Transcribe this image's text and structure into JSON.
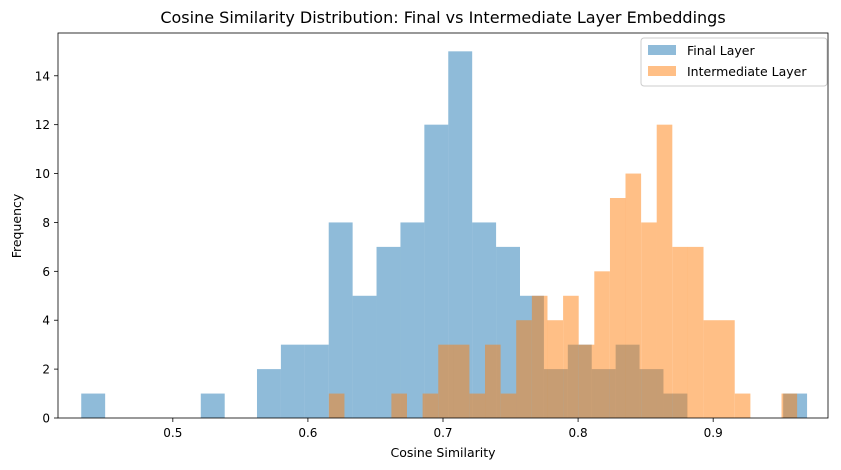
{
  "chart_data": {
    "type": "bar",
    "title": "Cosine Similarity Distribution: Final vs Intermediate Layer Embeddings",
    "xlabel": "Cosine Similarity",
    "ylabel": "Frequency",
    "xlim": [
      0.415,
      0.985
    ],
    "ylim": [
      0,
      15.75
    ],
    "x_ticks": [
      0.5,
      0.6,
      0.7,
      0.8,
      0.9
    ],
    "x_tick_labels": [
      "0.5",
      "0.6",
      "0.7",
      "0.8",
      "0.9"
    ],
    "y_ticks": [
      0,
      2,
      4,
      6,
      8,
      10,
      12,
      14
    ],
    "y_tick_labels": [
      "0",
      "2",
      "4",
      "6",
      "8",
      "10",
      "12",
      "14"
    ],
    "grid": false,
    "legend_position": "top-right",
    "series": [
      {
        "name": "Final Layer",
        "color": "#1f77b4",
        "opacity": 0.5,
        "bin_width": 0.0177,
        "bins": [
          {
            "x": 0.4322,
            "count": 1
          },
          {
            "x": 0.5207,
            "count": 1
          },
          {
            "x": 0.5623,
            "count": 2
          },
          {
            "x": 0.58,
            "count": 3
          },
          {
            "x": 0.5977,
            "count": 3
          },
          {
            "x": 0.6154,
            "count": 8
          },
          {
            "x": 0.6331,
            "count": 5
          },
          {
            "x": 0.6508,
            "count": 7
          },
          {
            "x": 0.6685,
            "count": 8
          },
          {
            "x": 0.6862,
            "count": 12
          },
          {
            "x": 0.7039,
            "count": 15
          },
          {
            "x": 0.7216,
            "count": 8
          },
          {
            "x": 0.7393,
            "count": 7
          },
          {
            "x": 0.757,
            "count": 5
          },
          {
            "x": 0.7747,
            "count": 2
          },
          {
            "x": 0.7924,
            "count": 3
          },
          {
            "x": 0.8101,
            "count": 2
          },
          {
            "x": 0.8278,
            "count": 3
          },
          {
            "x": 0.8455,
            "count": 2
          },
          {
            "x": 0.8632,
            "count": 1
          },
          {
            "x": 0.9518,
            "count": 1
          }
        ]
      },
      {
        "name": "Intermediate Layer",
        "color": "#ff7f0e",
        "opacity": 0.5,
        "bin_width": 0.01155,
        "bins": [
          {
            "x": 0.6155,
            "count": 1
          },
          {
            "x": 0.6618,
            "count": 1
          },
          {
            "x": 0.6849,
            "count": 1
          },
          {
            "x": 0.6965,
            "count": 3
          },
          {
            "x": 0.708,
            "count": 3
          },
          {
            "x": 0.7196,
            "count": 1
          },
          {
            "x": 0.7311,
            "count": 3
          },
          {
            "x": 0.7427,
            "count": 1
          },
          {
            "x": 0.7542,
            "count": 4
          },
          {
            "x": 0.7658,
            "count": 5
          },
          {
            "x": 0.7773,
            "count": 4
          },
          {
            "x": 0.7889,
            "count": 5
          },
          {
            "x": 0.8005,
            "count": 3
          },
          {
            "x": 0.812,
            "count": 6
          },
          {
            "x": 0.8236,
            "count": 9
          },
          {
            "x": 0.8351,
            "count": 10
          },
          {
            "x": 0.8467,
            "count": 8
          },
          {
            "x": 0.8582,
            "count": 12
          },
          {
            "x": 0.8698,
            "count": 7
          },
          {
            "x": 0.8813,
            "count": 7
          },
          {
            "x": 0.8929,
            "count": 4
          },
          {
            "x": 0.9044,
            "count": 4
          },
          {
            "x": 0.916,
            "count": 1
          },
          {
            "x": 0.9506,
            "count": 1
          }
        ]
      }
    ]
  }
}
